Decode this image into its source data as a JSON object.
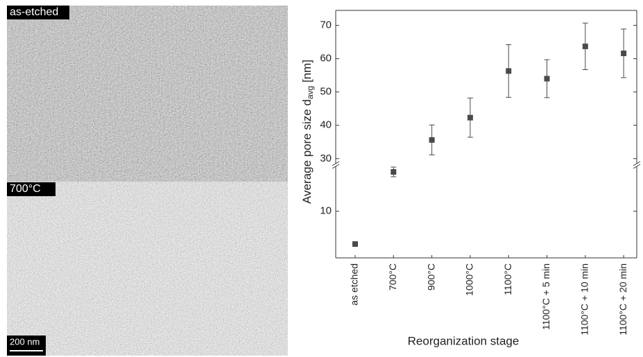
{
  "panels": [
    {
      "label": "as-etched"
    },
    {
      "label": "700°C"
    }
  ],
  "scale_bar": "200 nm",
  "chart_data": {
    "type": "errorbar",
    "x_label": "Reorganization stage",
    "y_label": [
      "Average pore size d",
      "avg",
      " [nm]"
    ],
    "categories": [
      "as etched",
      "700°C",
      "900°C",
      "1000°C",
      "1100°C",
      "1100°C + 5 min",
      "1100°C + 10 min",
      "1100°C + 20 min"
    ],
    "values": [
      0.5,
      21.4,
      35.6,
      42.3,
      56.3,
      54.0,
      63.7,
      61.6
    ],
    "errors": [
      null,
      1.4,
      4.5,
      5.9,
      7.9,
      5.7,
      7.0,
      7.3
    ],
    "color": "#4a4a4a",
    "y_segments": [
      {
        "ylim": [
          -3.5,
          23
        ],
        "yticks": [
          10
        ]
      },
      {
        "ylim": [
          28.5,
          74.5
        ],
        "yticks": [
          30,
          40,
          50,
          60,
          70
        ]
      }
    ]
  }
}
